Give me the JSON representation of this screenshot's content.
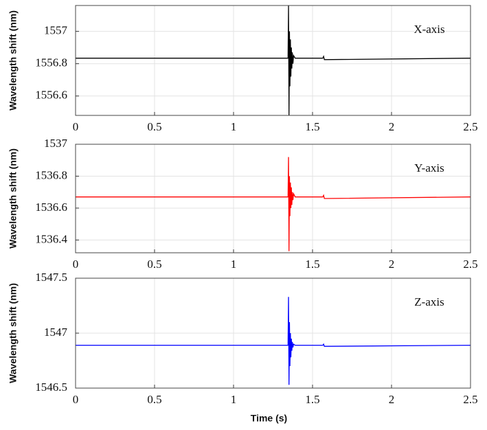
{
  "chart_data": [
    {
      "type": "line",
      "ylabel": "Wavelength shift  (nm)",
      "annotation": "X-axis",
      "color": "#000000",
      "grid": true,
      "x": [
        0,
        1.345,
        1.348,
        1.351,
        1.354,
        1.357,
        1.36,
        1.363,
        1.366,
        1.369,
        1.372,
        1.376,
        1.38,
        1.39,
        1.565,
        1.57,
        1.575,
        2.5
      ],
      "values": [
        1556.834,
        1556.834,
        1557.16,
        1556.48,
        1557.0,
        1556.66,
        1556.95,
        1556.72,
        1556.9,
        1556.77,
        1556.87,
        1556.8,
        1556.85,
        1556.834,
        1556.834,
        1556.845,
        1556.825,
        1556.834
      ],
      "xlim": [
        0,
        2.5
      ],
      "xticks": [
        0,
        0.5,
        1,
        1.5,
        2,
        2.5
      ],
      "ylim": [
        1556.48,
        1557.16
      ],
      "yticks": [
        1556.6,
        1556.8,
        1557
      ]
    },
    {
      "type": "line",
      "ylabel": "Wavelength shift  (nm)",
      "annotation": "Y-axis",
      "color": "#ff0000",
      "grid": true,
      "x": [
        0,
        1.345,
        1.348,
        1.351,
        1.354,
        1.357,
        1.36,
        1.363,
        1.366,
        1.369,
        1.372,
        1.376,
        1.38,
        1.39,
        1.565,
        1.57,
        1.575,
        2.5
      ],
      "values": [
        1536.67,
        1536.67,
        1536.92,
        1536.33,
        1536.8,
        1536.55,
        1536.76,
        1536.6,
        1536.73,
        1536.62,
        1536.7,
        1536.65,
        1536.69,
        1536.67,
        1536.67,
        1536.68,
        1536.66,
        1536.67
      ],
      "xlim": [
        0,
        2.5
      ],
      "xticks": [
        0,
        0.5,
        1,
        1.5,
        2,
        2.5
      ],
      "ylim": [
        1536.32,
        1537
      ],
      "yticks": [
        1536.4,
        1536.6,
        1536.8,
        1537
      ]
    },
    {
      "type": "line",
      "ylabel": "Wavelength shift  (nm)",
      "annotation": "Z-axis",
      "color": "#0000ff",
      "grid": true,
      "xlabel": "Time  (s)",
      "x": [
        0,
        1.345,
        1.348,
        1.351,
        1.354,
        1.357,
        1.36,
        1.363,
        1.366,
        1.369,
        1.372,
        1.376,
        1.38,
        1.39,
        1.565,
        1.57,
        1.575,
        2.5
      ],
      "values": [
        1546.89,
        1546.89,
        1547.33,
        1546.53,
        1547.1,
        1546.7,
        1547.0,
        1546.78,
        1546.95,
        1546.84,
        1546.92,
        1546.87,
        1546.9,
        1546.89,
        1546.89,
        1546.9,
        1546.88,
        1546.89
      ],
      "xlim": [
        0,
        2.5
      ],
      "xticks": [
        0,
        0.5,
        1,
        1.5,
        2,
        2.5
      ],
      "ylim": [
        1546.5,
        1547.5
      ],
      "yticks": [
        1546.5,
        1547,
        1547.5
      ]
    }
  ]
}
